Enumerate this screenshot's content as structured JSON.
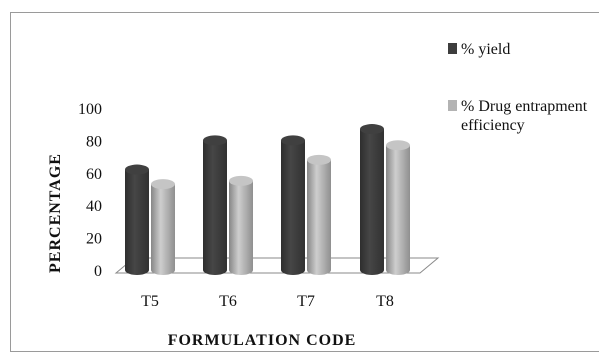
{
  "chart_data": {
    "type": "bar",
    "style": "3d-cylinder",
    "categories": [
      "T5",
      "T6",
      "T7",
      "T8"
    ],
    "series": [
      {
        "name": "% yield",
        "values": [
          62,
          80,
          80,
          87
        ],
        "color": "#3d3d3d"
      },
      {
        "name": "% Drug entrapment efficiency",
        "values": [
          53,
          55,
          68,
          77
        ],
        "color": "#b3b3b3"
      }
    ],
    "xlabel": "FORMULATION CODE",
    "ylabel": "PERCENTAGE",
    "ylim": [
      0,
      100
    ],
    "yticks": [
      0,
      20,
      40,
      60,
      80,
      100
    ],
    "legend_position": "right",
    "grid": false
  },
  "legend": {
    "items": [
      {
        "lines": [
          "% yield"
        ]
      },
      {
        "lines": [
          "% Drug entrapment",
          "efficiency"
        ]
      }
    ]
  }
}
